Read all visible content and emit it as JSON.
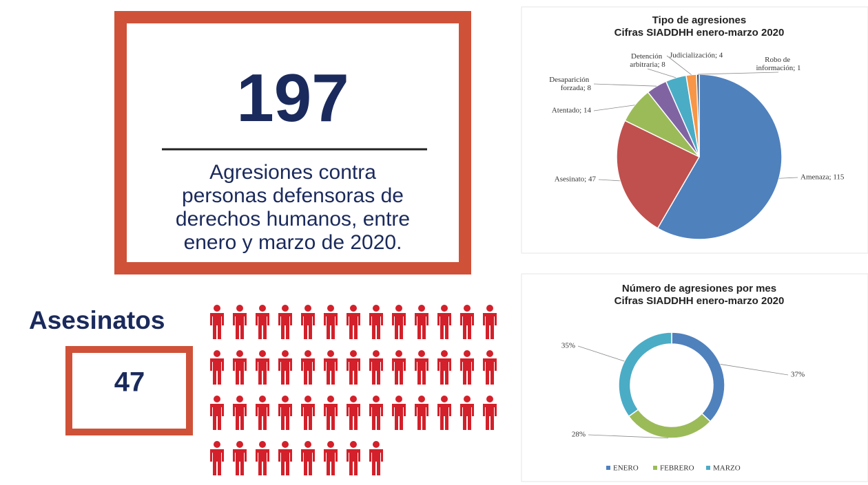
{
  "infographic": {
    "total": 197,
    "description": [
      "Agresiones contra",
      "personas defensoras de",
      "derechos humanos, entre",
      "enero y marzo de 2020."
    ],
    "killings_label": "Asesinatos",
    "killings": 47
  },
  "chart_data": [
    {
      "type": "pie",
      "title": "Tipo de agresiones",
      "subtitle": "Cifras SIADDHH enero-marzo 2020",
      "values": [
        115,
        47,
        14,
        8,
        8,
        4,
        1
      ],
      "value_labels": [
        "Amenaza; 115",
        "Asesinato; 47",
        "Atentado; 14",
        "Desaparición forzada; 8",
        "Detención arbitraria; 8",
        "Judicialización; 4",
        "Robo de información; 1"
      ],
      "colors": [
        "#4f81bd",
        "#c0504d",
        "#9bbb59",
        "#8064a2",
        "#4bacc6",
        "#f79646",
        "#2c4d75"
      ]
    },
    {
      "type": "donut",
      "title": "Número de agresiones por mes",
      "subtitle": "Cifras SIADDHH enero-marzo 2020",
      "categories": [
        "ENERO",
        "FEBRERO",
        "MARZO"
      ],
      "values": [
        37,
        28,
        35
      ],
      "value_labels": [
        "37%",
        "28%",
        "35%"
      ],
      "colors": [
        "#4f81bd",
        "#9bbb59",
        "#4bacc6"
      ],
      "legend": "bottom"
    }
  ]
}
